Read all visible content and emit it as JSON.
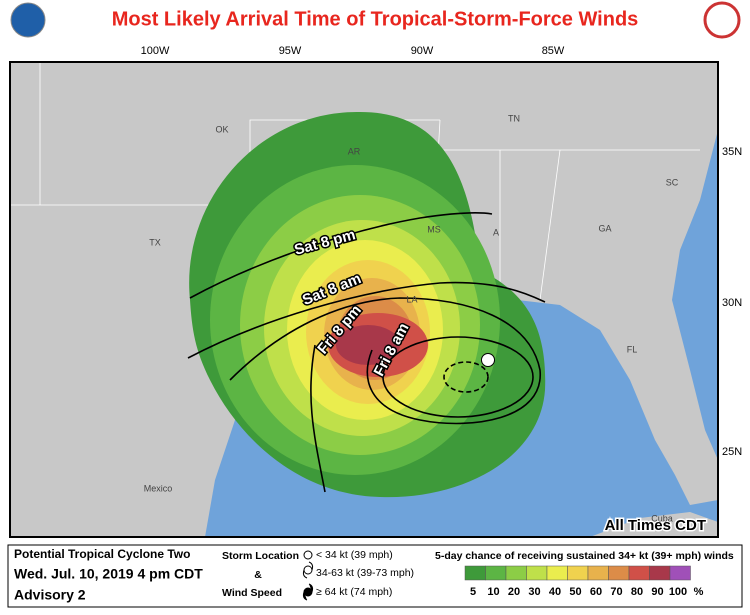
{
  "header": {
    "title": "Most Likely Arrival Time of Tropical-Storm-Force Winds"
  },
  "map": {
    "longitude_labels": [
      "100W",
      "95W",
      "90W",
      "85W"
    ],
    "latitude_labels": [
      "35N",
      "30N",
      "25N"
    ],
    "place_labels": [
      "OK",
      "AR",
      "TN",
      "MS",
      "A",
      "GA",
      "SC",
      "TX",
      "LA",
      "FL",
      "Mexico",
      "Cuba"
    ],
    "time_labels": [
      "Sat 8 pm",
      "Sat 8 am",
      "Fri 8 pm",
      "Fri 8 am"
    ],
    "note": "All Times CDT"
  },
  "legend": {
    "storm": "Potential Tropical Cyclone Two",
    "date": "Wed. Jul. 10, 2019  4 pm CDT",
    "advisory": "Advisory 2",
    "key_title": [
      "Storm Location",
      "&",
      "Wind Speed"
    ],
    "key_items": [
      "< 34 kt (39 mph)",
      "34-63 kt (39-73 mph)",
      "≥ 64 kt (74 mph)"
    ],
    "scale_title": "5-day chance of receiving sustained 34+ kt (39+ mph) winds",
    "scale_labels": [
      "5",
      "10",
      "20",
      "30",
      "40",
      "50",
      "60",
      "70",
      "80",
      "90",
      "100",
      "%"
    ],
    "scale_colors": [
      "#3e9a3a",
      "#5cb544",
      "#8ccd46",
      "#bfe04a",
      "#eaed4e",
      "#f0d24e",
      "#e8b24c",
      "#dc8c48",
      "#d05048",
      "#a8384a",
      "#a050b8"
    ]
  }
}
